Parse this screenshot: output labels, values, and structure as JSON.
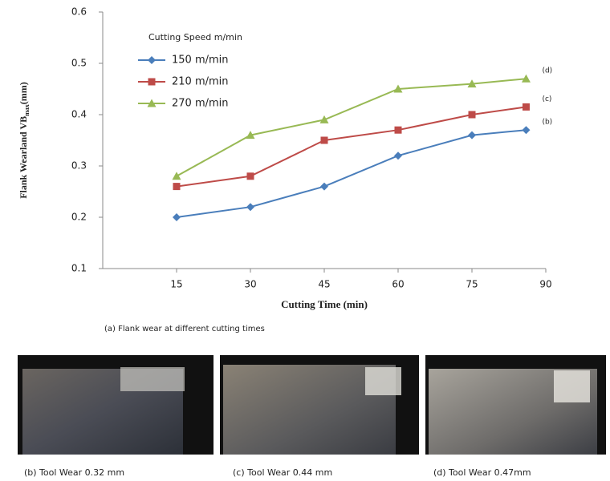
{
  "chart_data": {
    "type": "line",
    "y_label": "Flank Wearland VB",
    "y_label_sub": "max",
    "y_label_unit": "(mm)",
    "x_label": "Cutting Time (min)",
    "legend_title": "Cutting  Speed m/min",
    "legend": "upper-left",
    "x": [
      15,
      30,
      45,
      60,
      75,
      86
    ],
    "series": [
      {
        "name": "150 m/min",
        "color": "#4a7ebb",
        "marker": "diamond",
        "values": [
          0.2,
          0.22,
          0.26,
          0.32,
          0.36,
          0.37
        ]
      },
      {
        "name": "210 m/min",
        "color": "#be4b48",
        "marker": "square",
        "values": [
          0.26,
          0.28,
          0.35,
          0.37,
          0.4,
          0.415
        ]
      },
      {
        "name": "270 m/min",
        "color": "#98b954",
        "marker": "triangle",
        "values": [
          0.28,
          0.36,
          0.39,
          0.45,
          0.46,
          0.47
        ]
      }
    ],
    "annotations": [
      "(b)",
      "(c)",
      "(d)"
    ],
    "xlim": [
      0,
      90
    ],
    "xticks": [
      15,
      30,
      45,
      60,
      75,
      90
    ],
    "ylim": [
      0.1,
      0.6
    ],
    "yticks": [
      0.1,
      0.2,
      0.3,
      0.4,
      0.5,
      0.6
    ]
  },
  "figure": {
    "caption": "(a) Flank wear at different cutting times",
    "panels": [
      "(b) Tool Wear 0.32 mm",
      "(c) Tool Wear 0.44 mm",
      "(d) Tool Wear 0.47mm"
    ]
  }
}
